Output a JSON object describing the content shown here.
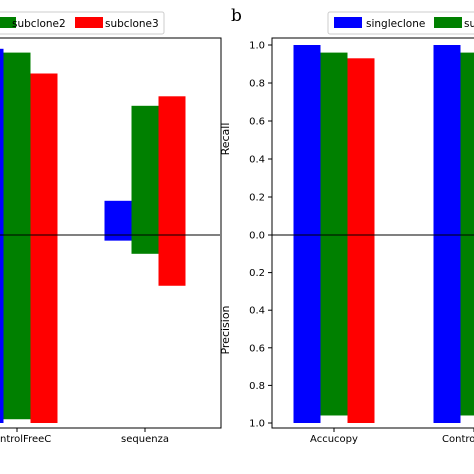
{
  "colors": {
    "blue": "#0000ff",
    "green": "#008000",
    "red": "#ff0000"
  },
  "panel_b_label": "b",
  "chart_data": [
    {
      "type": "bar",
      "panel": "a",
      "categories": [
        "ControlFreeC",
        "sequenza"
      ],
      "category_labels": [
        "ntrolFreeC",
        "sequenza"
      ],
      "series": [
        {
          "name": "singleclone",
          "color": "#0000ff",
          "recall": [
            0.98,
            0.18
          ],
          "precision": [
            1.0,
            0.03
          ]
        },
        {
          "name": "subclone2",
          "color": "#008000",
          "recall": [
            0.96,
            0.68
          ],
          "precision": [
            0.98,
            0.1
          ]
        },
        {
          "name": "subclone3",
          "color": "#ff0000",
          "recall": [
            0.85,
            0.73
          ],
          "precision": [
            1.0,
            0.27
          ]
        }
      ],
      "legend_labels": [
        "subclone2",
        "subclone3"
      ],
      "legend_position": "top",
      "recall_range": [
        0,
        1
      ],
      "precision_range": [
        0,
        1
      ]
    },
    {
      "type": "bar",
      "panel": "b",
      "categories": [
        "Accucopy",
        "ControlFreeC"
      ],
      "category_labels": [
        "Accucopy",
        "Contro"
      ],
      "series": [
        {
          "name": "singleclone",
          "color": "#0000ff",
          "recall": [
            1.0,
            1.0
          ],
          "precision": [
            1.0,
            1.0
          ]
        },
        {
          "name": "subclone2",
          "color": "#008000",
          "recall": [
            0.96,
            0.96
          ],
          "precision": [
            0.96,
            0.96
          ]
        },
        {
          "name": "subclone3",
          "color": "#ff0000",
          "recall": [
            0.93,
            0.93
          ],
          "precision": [
            1.0,
            1.0
          ]
        }
      ],
      "legend_labels": [
        "singleclone",
        "su"
      ],
      "legend_position": "top",
      "ylabel_top": "Recall",
      "ylabel_bottom": "Precision",
      "yticks_top": [
        "1.0",
        "0.8",
        "0.6",
        "0.4",
        "0.2",
        "0.0"
      ],
      "yticks_bottom": [
        "0.2",
        "0.4",
        "0.6",
        "0.8",
        "1.0"
      ],
      "recall_range": [
        0,
        1
      ],
      "precision_range": [
        0,
        1
      ]
    }
  ]
}
